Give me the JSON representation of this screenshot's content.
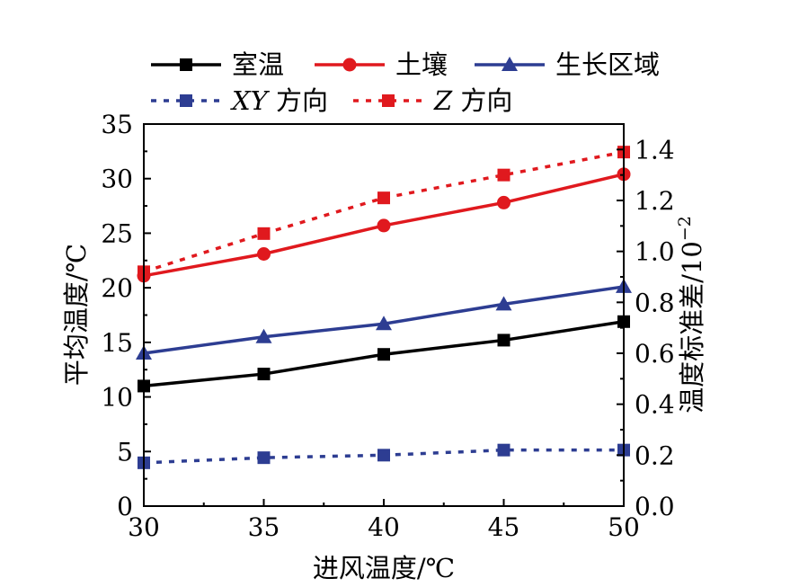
{
  "chart_data": {
    "type": "line",
    "xlabel": "进风温度/℃",
    "ylabel": "平均温度/℃",
    "y2label": "温度标准差/10",
    "y2label_exp": "−2",
    "x": [
      30,
      35,
      40,
      45,
      50
    ],
    "xlim": [
      30,
      50
    ],
    "xticks": [
      "30",
      "35",
      "40",
      "45",
      "50"
    ],
    "ylim": [
      0,
      35
    ],
    "yticks": [
      "0",
      "5",
      "10",
      "15",
      "20",
      "25",
      "30",
      "35"
    ],
    "y2lim": [
      0,
      1.5
    ],
    "y2ticks": [
      "0.0",
      "0.2",
      "0.4",
      "0.6",
      "0.8",
      "1.0",
      "1.2",
      "1.4"
    ],
    "grid": false,
    "legend_position": "top",
    "series": [
      {
        "name": "室温",
        "axis": "left",
        "color": "#000000",
        "marker": "square",
        "dash": false,
        "values": [
          11.0,
          12.1,
          13.9,
          15.2,
          16.9
        ]
      },
      {
        "name": "土壤",
        "axis": "left",
        "color": "#e0191e",
        "marker": "circle",
        "dash": false,
        "values": [
          21.1,
          23.1,
          25.7,
          27.8,
          30.4
        ]
      },
      {
        "name": "生长区域",
        "axis": "left",
        "color": "#2d3d92",
        "marker": "triangle",
        "dash": false,
        "values": [
          14.0,
          15.5,
          16.7,
          18.5,
          20.1
        ]
      },
      {
        "name": "XY 方向",
        "name_italic": "XY",
        "name_rest": " 方向",
        "axis": "right",
        "color": "#2d3d92",
        "marker": "square",
        "dash": true,
        "values": [
          0.17,
          0.19,
          0.2,
          0.22,
          0.22
        ]
      },
      {
        "name": "Z 方向",
        "name_italic": "Z",
        "name_rest": " 方向",
        "axis": "right",
        "color": "#e0191e",
        "marker": "square",
        "dash": true,
        "values": [
          0.92,
          1.07,
          1.21,
          1.3,
          1.39
        ]
      }
    ]
  }
}
